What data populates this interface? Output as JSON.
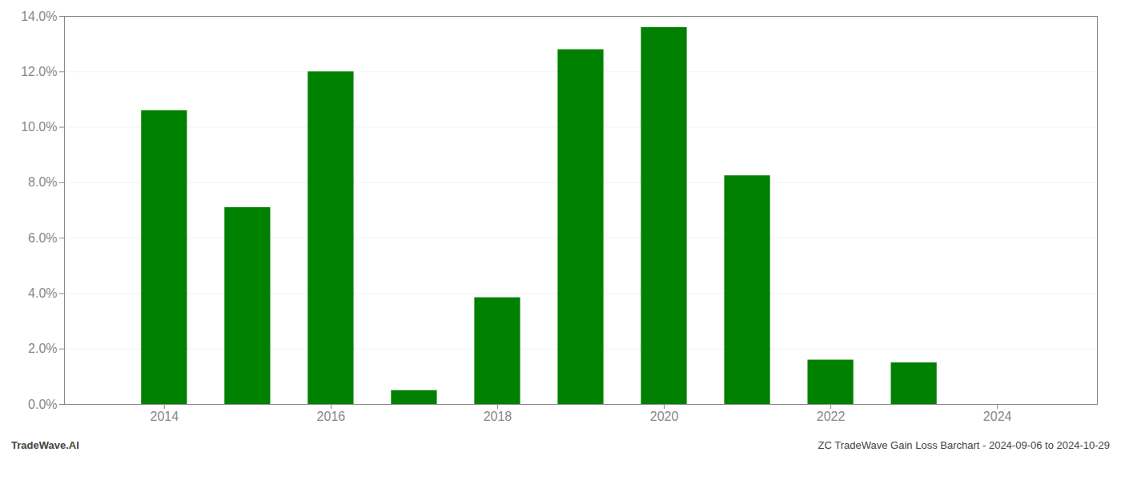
{
  "chart_data": {
    "type": "bar",
    "x": [
      2014,
      2015,
      2016,
      2017,
      2018,
      2019,
      2020,
      2021,
      2022,
      2023,
      2024
    ],
    "values": [
      0.106,
      0.071,
      0.12,
      0.005,
      0.0385,
      0.128,
      0.136,
      0.0825,
      0.016,
      0.015,
      0.0
    ],
    "color": "#008000",
    "xlim": [
      2012.8,
      2025.2
    ],
    "xticks": [
      2014,
      2016,
      2018,
      2020,
      2022,
      2024
    ],
    "ylim": [
      0,
      0.14
    ],
    "yticks": [
      {
        "value": 0.0,
        "label": "0.0%"
      },
      {
        "value": 0.02,
        "label": "2.0%"
      },
      {
        "value": 0.04,
        "label": "4.0%"
      },
      {
        "value": 0.06,
        "label": "6.0%"
      },
      {
        "value": 0.08,
        "label": "8.0%"
      },
      {
        "value": 0.1,
        "label": "10.0%"
      },
      {
        "value": 0.12,
        "label": "12.0%"
      },
      {
        "value": 0.14,
        "label": "14.0%"
      }
    ],
    "grid": true,
    "annotations": [
      "TradeWave.AI",
      "ZC TradeWave Gain Loss Barchart - 2024-09-06 to 2024-10-29"
    ]
  }
}
